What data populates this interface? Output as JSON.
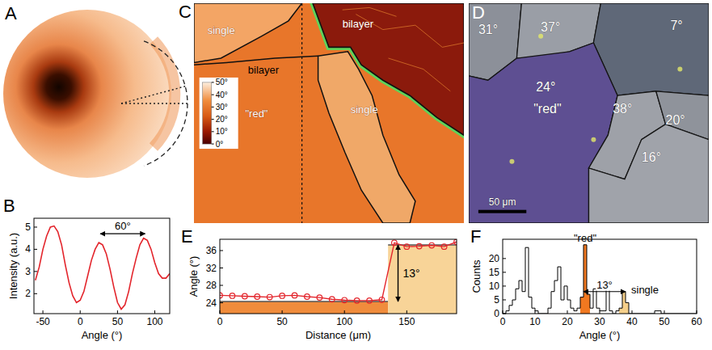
{
  "chart_data": [
    {
      "panel": "B",
      "type": "line",
      "x_label": "Angle (°)",
      "y_label": "Intensity (a.u.)",
      "x": [
        -60,
        -55,
        -50,
        -45,
        -40,
        -35,
        -30,
        -25,
        -20,
        -15,
        -10,
        -5,
        0,
        5,
        10,
        15,
        20,
        25,
        30,
        35,
        40,
        45,
        50,
        55,
        60,
        65,
        70,
        75,
        80,
        85,
        90,
        95,
        100,
        105,
        110,
        115,
        120
      ],
      "values": [
        2.6,
        3.2,
        4.0,
        4.6,
        5.0,
        5.05,
        4.8,
        4.2,
        3.3,
        2.5,
        1.9,
        1.6,
        1.7,
        2.1,
        2.8,
        3.5,
        4.0,
        4.3,
        4.2,
        3.8,
        3.1,
        2.3,
        1.6,
        1.3,
        1.5,
        2.1,
        2.9,
        3.6,
        4.2,
        4.5,
        4.4,
        4.0,
        3.4,
        2.9,
        2.7,
        2.7,
        2.9
      ],
      "color": "#e3242b",
      "xlim": [
        -62,
        120
      ],
      "ylim": [
        1.1,
        5.4
      ],
      "xticks": [
        -50,
        0,
        50,
        100
      ],
      "yticks": [
        2,
        3,
        4,
        5
      ],
      "annotations": [
        {
          "text": "60°",
          "x_from": 27,
          "x_to": 87,
          "y": 4.7
        }
      ]
    },
    {
      "panel": "E",
      "type": "line",
      "marker": "circle",
      "x_label": "Distance (μm)",
      "y_label": "Angle (°)",
      "x": [
        0,
        10,
        20,
        30,
        40,
        50,
        60,
        70,
        80,
        90,
        100,
        110,
        120,
        130,
        140,
        150,
        160,
        170,
        180,
        190
      ],
      "values": [
        25.7,
        25.6,
        25.5,
        25.4,
        25.3,
        25.6,
        25.7,
        25.4,
        25.2,
        24.8,
        24.6,
        24.5,
        24.5,
        24.7,
        37.8,
        36.9,
        37.0,
        37.2,
        36.9,
        38.0
      ],
      "color": "#e3242b",
      "xlim": [
        0,
        190
      ],
      "ylim": [
        21.5,
        38.6
      ],
      "xticks": [
        0,
        50,
        100,
        150
      ],
      "yticks": [
        24,
        28,
        32,
        36
      ],
      "levels": [
        {
          "from": 0,
          "to": 135,
          "value": 24.3,
          "color": "#f08c3c"
        },
        {
          "from": 135,
          "to": 190,
          "value": 37.3,
          "color": "#f8d498"
        }
      ],
      "annotations": [
        {
          "text": "13°",
          "x": 143,
          "y_from": 24.3,
          "y_to": 37.3
        }
      ]
    },
    {
      "panel": "F",
      "type": "histogram",
      "x_label": "Angle (°)",
      "y_label": "Counts",
      "bins": [
        0,
        1,
        2,
        3,
        4,
        5,
        6,
        7,
        8,
        9,
        10,
        11,
        12,
        13,
        14,
        15,
        16,
        17,
        18,
        19,
        20,
        21,
        22,
        23,
        24,
        25,
        26,
        27,
        28,
        29,
        30,
        31,
        32,
        33,
        34,
        35,
        36,
        37,
        38,
        39,
        40,
        41,
        42,
        43,
        44,
        45,
        46,
        47,
        48,
        49,
        50,
        51,
        52,
        53,
        54,
        55,
        56,
        57,
        58,
        59,
        60
      ],
      "counts": [
        0,
        1,
        3,
        5,
        9,
        12,
        8,
        24,
        6,
        2,
        1,
        0,
        0,
        0,
        2,
        8,
        12,
        17,
        5,
        10,
        5,
        2,
        1,
        2,
        6,
        25,
        7,
        2,
        9,
        2,
        1,
        1,
        12,
        1,
        0,
        1,
        2,
        8,
        4,
        0,
        0,
        0,
        0,
        0,
        0,
        0,
        0,
        1,
        1,
        0,
        0,
        0,
        0,
        0,
        0,
        0,
        0,
        0,
        0,
        0
      ],
      "color": "#000000",
      "xlim": [
        0,
        60
      ],
      "ylim": [
        0,
        27
      ],
      "xticks": [
        0,
        10,
        20,
        30,
        40,
        50,
        60
      ],
      "yticks": [
        0,
        5,
        10,
        15,
        20
      ],
      "highlights": [
        {
          "name": "\"red\"",
          "from": 24,
          "to": 27,
          "color": "#f07820"
        },
        {
          "name": "single",
          "from": 36,
          "to": 39,
          "color": "#f5cf8a"
        }
      ],
      "annotations": [
        {
          "text": "13°",
          "x_from": 25,
          "x_to": 38,
          "y": 8
        }
      ]
    }
  ],
  "figures": [
    {
      "panel": "A"
    },
    {
      "panel": "C",
      "labels": [
        "single",
        "bilayer",
        "bilayer",
        "single",
        "\"red\""
      ],
      "colorbar": {
        "range": [
          0,
          50
        ],
        "ticks": [
          {
            "value": 0,
            "label": "0°"
          },
          {
            "value": 10,
            "label": "10°"
          },
          {
            "value": 20,
            "label": "20°"
          },
          {
            "value": 30,
            "label": "30°"
          },
          {
            "value": 40,
            "label": "40°"
          },
          {
            "value": 50,
            "label": "50°"
          }
        ]
      }
    },
    {
      "panel": "D",
      "grains": [
        "31°",
        "37°",
        "7°",
        "24°",
        "\"red\"",
        "38°",
        "20°",
        "16°"
      ],
      "scale_bar": "50 μm"
    }
  ]
}
